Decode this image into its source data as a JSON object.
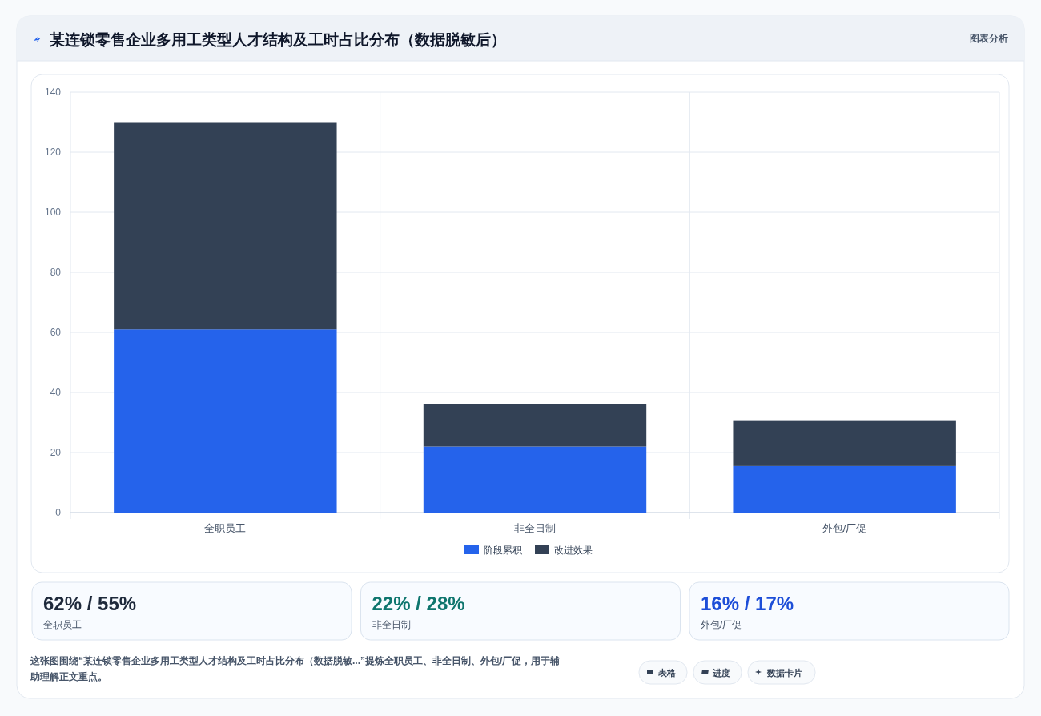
{
  "chart_data": {
    "type": "bar",
    "title": "某连锁零售企业多用工类型人才结构及工时占比分布（数据脱敏后）",
    "categories": [
      "全职员工",
      "非全日制",
      "外包/厂促"
    ],
    "stacked": true,
    "series": [
      {
        "name": "阶段累积",
        "color": "#2563eb",
        "values": [
          61,
          22,
          15.5
        ]
      },
      {
        "name": "改进效果",
        "color": "#334155",
        "values": [
          69,
          14,
          15
        ]
      }
    ],
    "ylim": [
      0,
      140
    ],
    "yticks": [
      0,
      20,
      40,
      60,
      80,
      100,
      120,
      140
    ],
    "grid": true,
    "legend": "bottom",
    "annotations": [
      "图表分析",
      "62% / 55%",
      "全职员工",
      "22% / 28%",
      "非全日制",
      "16% / 17%",
      "外包/厂促",
      "这张图围绕“某连锁零售企业多用工类型人才结构及工时占比分布（数据脱敏...”提炼全职员工、非全日制、外包/厂促，用于辅助理解正文重点。",
      "表格",
      "进度",
      "数据卡片"
    ]
  }
}
